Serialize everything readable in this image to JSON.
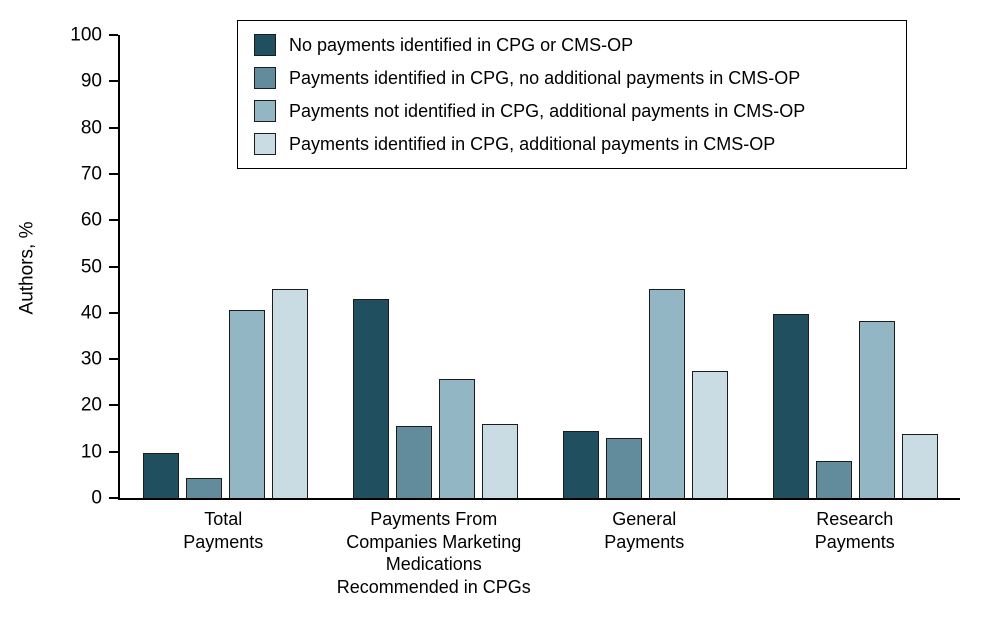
{
  "chart_data": {
    "type": "bar",
    "title": "",
    "xlabel": "",
    "ylabel": "Authors, %",
    "ylim": [
      0,
      100
    ],
    "yticks": [
      0,
      10,
      20,
      30,
      40,
      50,
      60,
      70,
      80,
      90,
      100
    ],
    "grid": false,
    "legend_position": "top-inside",
    "categories": [
      "Total\nPayments",
      "Payments From\nCompanies Marketing\nMedications\nRecommended in CPGs",
      "General\nPayments",
      "Research\nPayments"
    ],
    "series": [
      {
        "name": "No payments identified in CPG or CMS-OP",
        "color": "#20505f",
        "values": [
          9.8,
          43.0,
          14.4,
          39.7
        ]
      },
      {
        "name": "Payments identified in CPG, no additional payments in CMS-OP",
        "color": "#628b9b",
        "values": [
          4.4,
          15.6,
          13.0,
          8.1
        ]
      },
      {
        "name": "Payments not identified in CPG, additional payments in CMS-OP",
        "color": "#93b6c4",
        "values": [
          40.6,
          25.6,
          45.1,
          38.3
        ]
      },
      {
        "name": "Payments identified in CPG, additional payments in CMS-OP",
        "color": "#c9dce3",
        "values": [
          45.1,
          15.9,
          27.5,
          13.9
        ]
      }
    ]
  }
}
